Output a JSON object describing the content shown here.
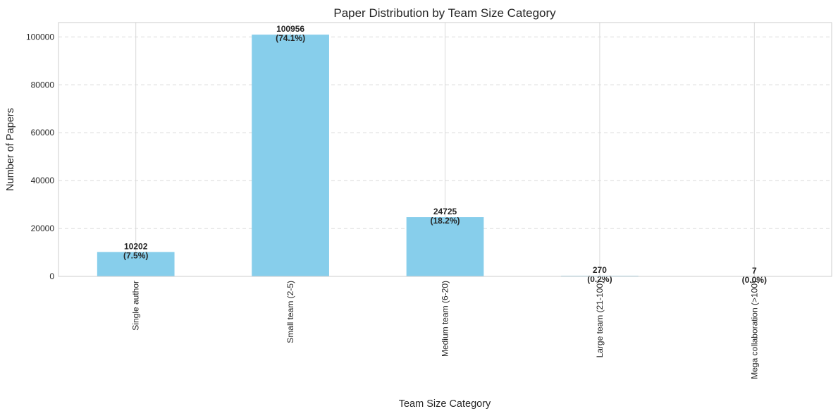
{
  "chart_data": {
    "type": "bar",
    "title": "Paper Distribution by Team Size Category",
    "xlabel": "Team Size Category",
    "ylabel": "Number of Papers",
    "categories": [
      "Single author",
      "Small team (2-5)",
      "Medium team (6-20)",
      "Large team (21-100)",
      "Mega collaboration (>100)"
    ],
    "values": [
      10202,
      100956,
      24725,
      270,
      7
    ],
    "value_labels": [
      "10202",
      "100956",
      "24725",
      "270",
      "7"
    ],
    "percent_labels": [
      "(7.5%)",
      "(74.1%)",
      "(18.2%)",
      "(0.2%)",
      "(0.0%)"
    ],
    "ylim": [
      0,
      106000
    ],
    "yticks": [
      0,
      20000,
      40000,
      60000,
      80000,
      100000
    ],
    "ytick_labels": [
      "0",
      "20000",
      "40000",
      "60000",
      "80000",
      "100000"
    ],
    "grid": "x solid, y dashed",
    "bar_color": "#87ceeb",
    "legend": "none"
  }
}
